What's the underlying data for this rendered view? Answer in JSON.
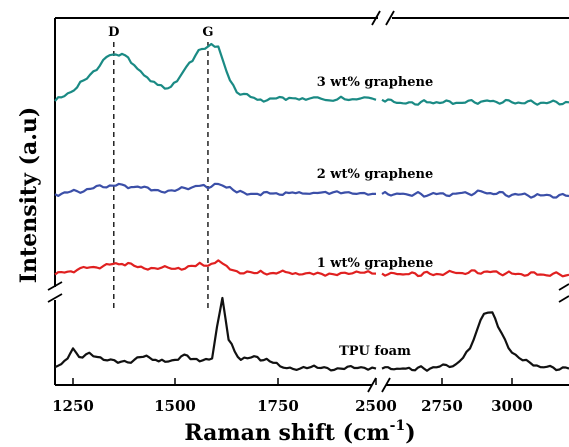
{
  "chart_data": {
    "type": "line",
    "xlabel": "Raman shift (cm",
    "xlabel_superscript": "-1",
    "xlabel_suffix": ")",
    "ylabel": "Intensity (a.u)",
    "x_broken_axis": true,
    "x_segments": [
      {
        "range": [
          1200,
          2500
        ],
        "ticks": [
          1250,
          1500,
          1750,
          2500
        ]
      },
      {
        "range": [
          2500,
          3200
        ],
        "ticks": [
          2500,
          2750,
          3000
        ]
      }
    ],
    "y_broken_axis": true,
    "peak_markers": [
      {
        "label": "D",
        "x": 1350
      },
      {
        "label": "G",
        "x": 1580
      }
    ],
    "series": [
      {
        "name": "3 wt% graphene",
        "color": "#1a8a84",
        "points": [
          [
            1200,
            0.08
          ],
          [
            1260,
            0.3
          ],
          [
            1300,
            0.56
          ],
          [
            1340,
            0.82
          ],
          [
            1370,
            0.84
          ],
          [
            1400,
            0.66
          ],
          [
            1440,
            0.4
          ],
          [
            1475,
            0.28
          ],
          [
            1505,
            0.4
          ],
          [
            1535,
            0.7
          ],
          [
            1565,
            0.92
          ],
          [
            1588,
            1.0
          ],
          [
            1605,
            0.96
          ],
          [
            1625,
            0.56
          ],
          [
            1650,
            0.22
          ],
          [
            1700,
            0.1
          ],
          [
            1800,
            0.13
          ],
          [
            1900,
            0.1
          ],
          [
            2000,
            0.14
          ],
          [
            2100,
            0.09
          ],
          [
            2200,
            0.15
          ],
          [
            2300,
            0.11
          ],
          [
            2400,
            0.14
          ],
          [
            2500,
            0.1
          ],
          [
            2600,
            0.04
          ],
          [
            2700,
            0.06
          ],
          [
            2800,
            0.05
          ],
          [
            2900,
            0.08
          ],
          [
            3000,
            0.06
          ],
          [
            3100,
            0.05
          ],
          [
            3200,
            0.06
          ]
        ]
      },
      {
        "name": "2 wt% graphene",
        "color": "#3b4fa8",
        "points": [
          [
            1200,
            0.06
          ],
          [
            1260,
            0.16
          ],
          [
            1300,
            0.26
          ],
          [
            1340,
            0.35
          ],
          [
            1370,
            0.38
          ],
          [
            1400,
            0.3
          ],
          [
            1450,
            0.2
          ],
          [
            1500,
            0.17
          ],
          [
            1540,
            0.28
          ],
          [
            1560,
            0.34
          ],
          [
            1580,
            0.26
          ],
          [
            1605,
            0.4
          ],
          [
            1625,
            0.28
          ],
          [
            1650,
            0.12
          ],
          [
            1700,
            0.07
          ],
          [
            1800,
            0.1
          ],
          [
            1900,
            0.08
          ],
          [
            2000,
            0.1
          ],
          [
            2100,
            0.07
          ],
          [
            2200,
            0.09
          ],
          [
            2300,
            0.08
          ],
          [
            2400,
            0.1
          ],
          [
            2500,
            0.07
          ],
          [
            2600,
            0.06
          ],
          [
            2700,
            0.05
          ],
          [
            2800,
            0.08
          ],
          [
            2900,
            0.12
          ],
          [
            3000,
            0.04
          ],
          [
            3100,
            0.02
          ],
          [
            3200,
            0.0
          ]
        ]
      },
      {
        "name": "1 wt% graphene",
        "color": "#e02020",
        "points": [
          [
            1200,
            0.05
          ],
          [
            1260,
            0.2
          ],
          [
            1300,
            0.3
          ],
          [
            1340,
            0.38
          ],
          [
            1370,
            0.4
          ],
          [
            1400,
            0.34
          ],
          [
            1450,
            0.26
          ],
          [
            1500,
            0.24
          ],
          [
            1540,
            0.34
          ],
          [
            1560,
            0.44
          ],
          [
            1580,
            0.34
          ],
          [
            1605,
            0.52
          ],
          [
            1625,
            0.34
          ],
          [
            1650,
            0.16
          ],
          [
            1700,
            0.1
          ],
          [
            1800,
            0.11
          ],
          [
            1900,
            0.09
          ],
          [
            2000,
            0.11
          ],
          [
            2100,
            0.08
          ],
          [
            2200,
            0.1
          ],
          [
            2300,
            0.09
          ],
          [
            2400,
            0.11
          ],
          [
            2500,
            0.08
          ],
          [
            2600,
            0.06
          ],
          [
            2700,
            0.07
          ],
          [
            2800,
            0.1
          ],
          [
            2900,
            0.14
          ],
          [
            3000,
            0.08
          ],
          [
            3100,
            0.05
          ],
          [
            3200,
            0.04
          ]
        ]
      },
      {
        "name": "TPU foam",
        "color": "#111111",
        "points": [
          [
            1200,
            0.04
          ],
          [
            1235,
            0.16
          ],
          [
            1250,
            0.3
          ],
          [
            1265,
            0.18
          ],
          [
            1290,
            0.24
          ],
          [
            1310,
            0.18
          ],
          [
            1325,
            0.14
          ],
          [
            1360,
            0.1
          ],
          [
            1400,
            0.14
          ],
          [
            1430,
            0.2
          ],
          [
            1460,
            0.12
          ],
          [
            1500,
            0.14
          ],
          [
            1530,
            0.2
          ],
          [
            1560,
            0.12
          ],
          [
            1590,
            0.16
          ],
          [
            1602,
            0.6
          ],
          [
            1615,
            1.0
          ],
          [
            1630,
            0.42
          ],
          [
            1660,
            0.14
          ],
          [
            1700,
            0.18
          ],
          [
            1730,
            0.12
          ],
          [
            1760,
            0.05
          ],
          [
            1850,
            0.02
          ],
          [
            2000,
            0.03
          ],
          [
            2200,
            0.02
          ],
          [
            2400,
            0.03
          ],
          [
            2500,
            0.02
          ],
          [
            2600,
            0.02
          ],
          [
            2700,
            0.02
          ],
          [
            2800,
            0.08
          ],
          [
            2850,
            0.3
          ],
          [
            2900,
            0.78
          ],
          [
            2930,
            0.8
          ],
          [
            2950,
            0.6
          ],
          [
            3000,
            0.24
          ],
          [
            3050,
            0.14
          ],
          [
            3100,
            0.04
          ],
          [
            3200,
            0.02
          ]
        ]
      }
    ],
    "grid": false
  }
}
